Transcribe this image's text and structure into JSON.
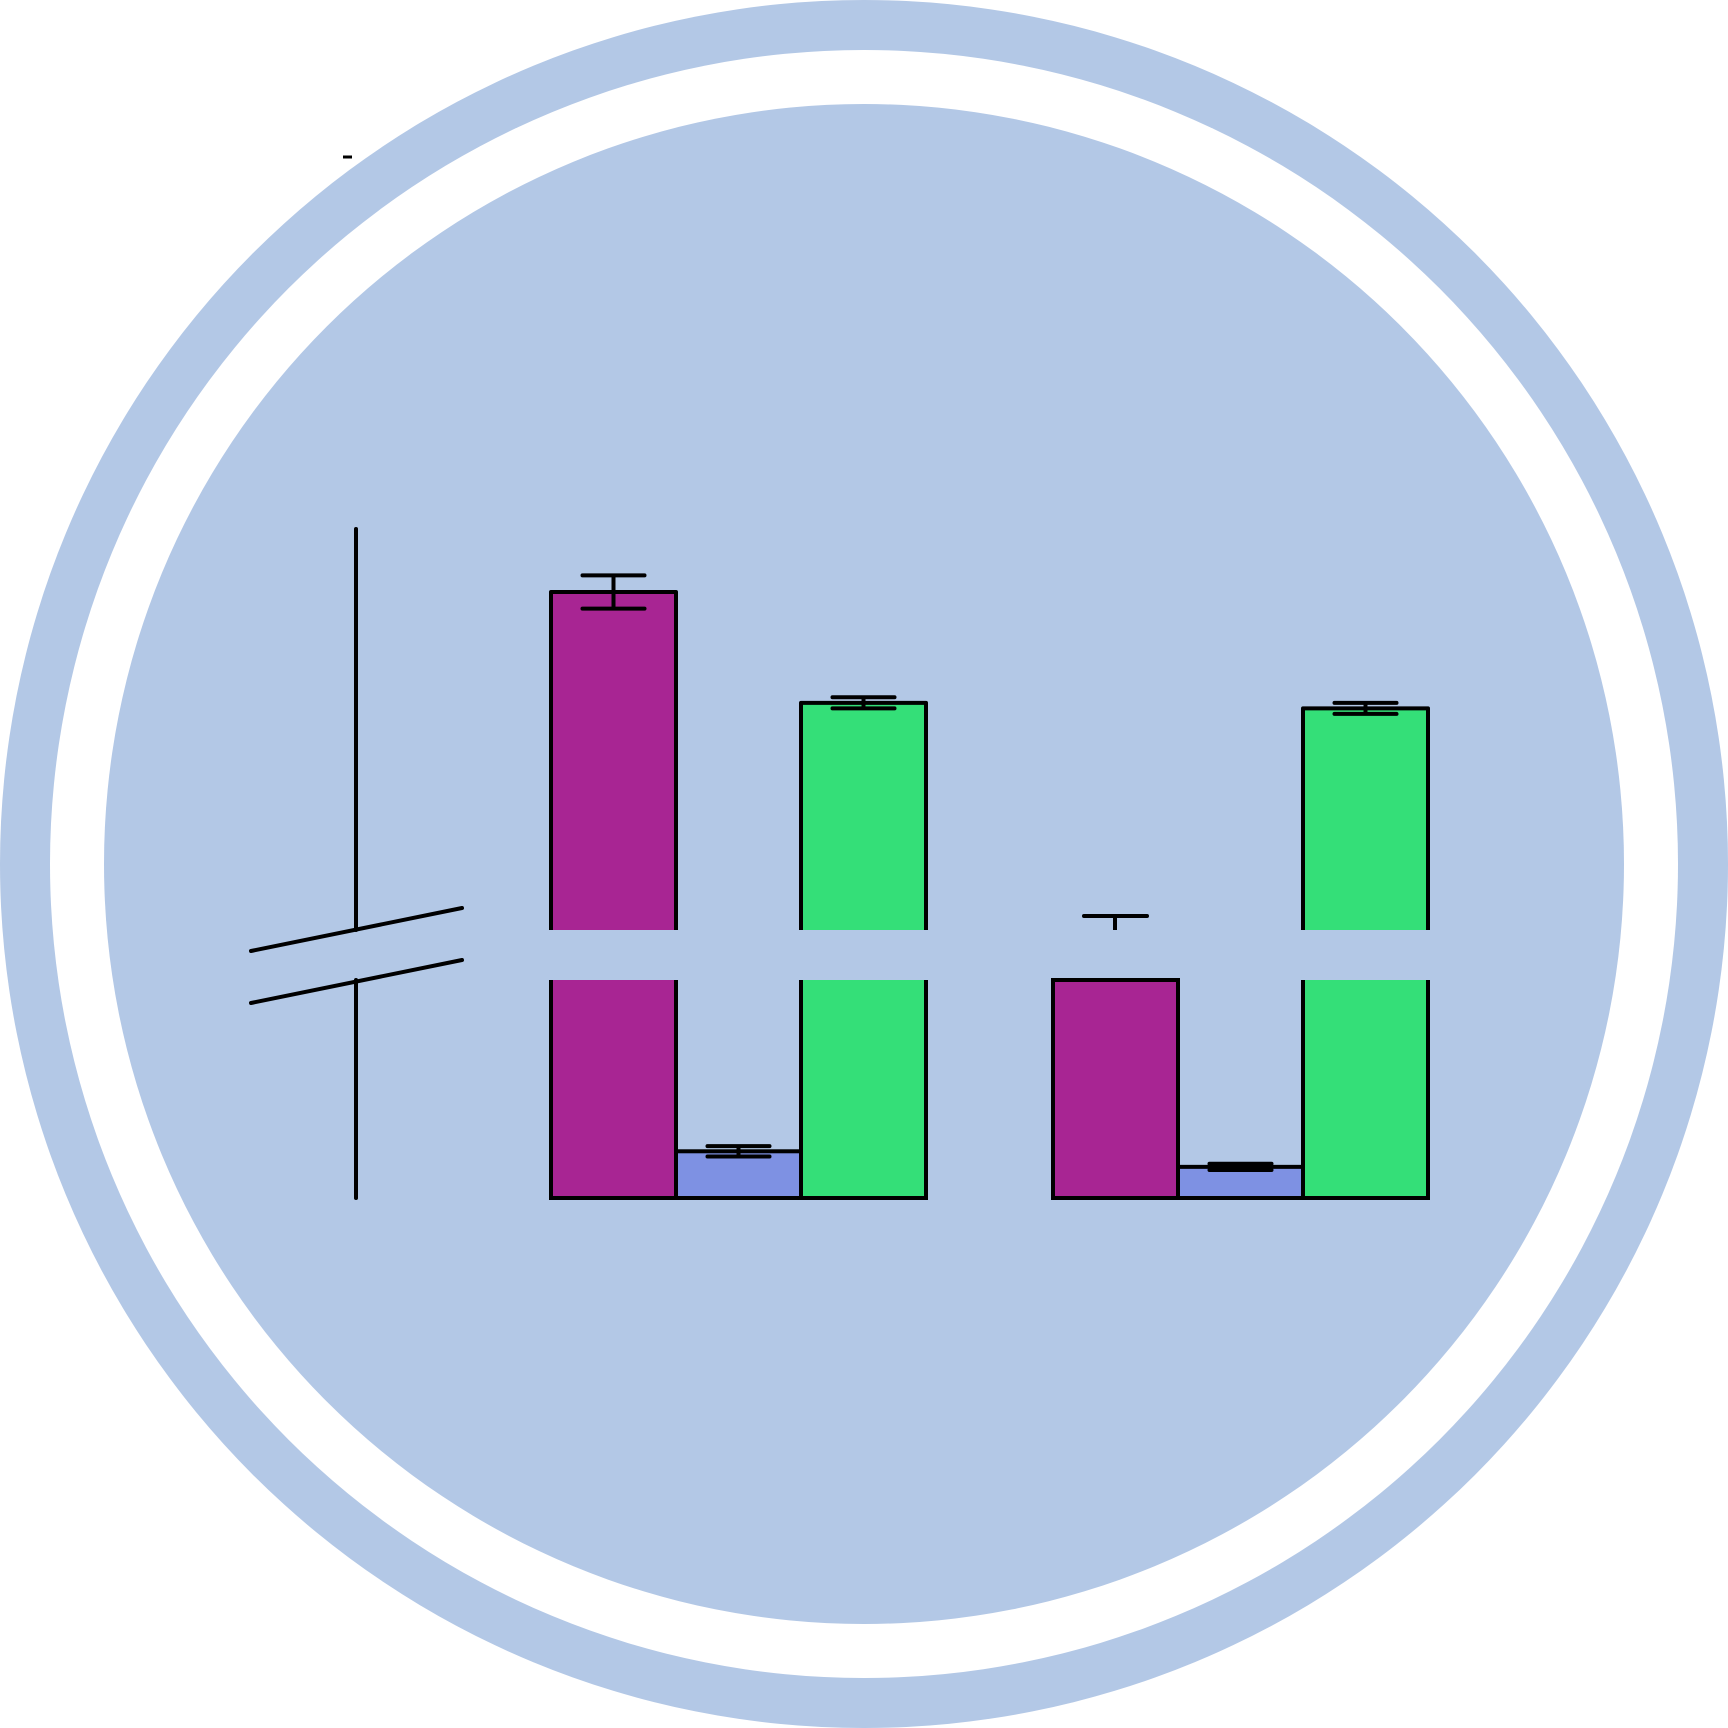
{
  "colors": {
    "badge_bg": "#b3c8e6",
    "ring": "#ffffff",
    "outline": "#000000",
    "series": [
      "#a82593",
      "#7e91e3",
      "#34df78"
    ]
  },
  "icon": "bar-chart-broken-axis-icon",
  "chart_data": {
    "type": "bar",
    "title": "",
    "xlabel": "",
    "ylabel": "",
    "y_axis_break": true,
    "grid": false,
    "legend": "none",
    "ylim": [
      0,
      100
    ],
    "break_range": [
      21,
      26
    ],
    "categories": [
      "",
      ""
    ],
    "series": [
      {
        "values": [
          87,
          21
        ],
        "error": [
          3,
          0.7
        ],
        "error_bars_visible": [
          true,
          false
        ]
      },
      {
        "values": [
          4.5,
          3
        ],
        "error": [
          0.5,
          0.3
        ],
        "error_bars_visible": [
          true,
          true
        ]
      },
      {
        "values": [
          67,
          66
        ],
        "error": [
          1,
          1
        ],
        "error_bars_visible": [
          true,
          true
        ]
      }
    ]
  }
}
